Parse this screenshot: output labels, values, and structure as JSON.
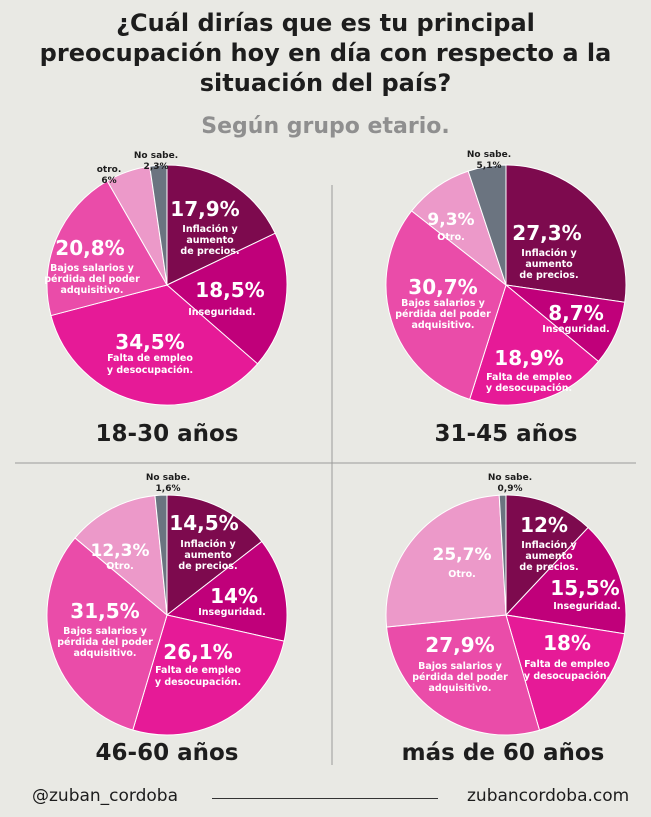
{
  "title": {
    "lines": [
      "¿Cuál dirías que es tu principal",
      "preocupación hoy en día con respecto a la",
      "situación del país?"
    ],
    "subtitle": "Según grupo etario."
  },
  "colors": {
    "inflacion": "#7d0a4e",
    "inseguridad": "#c0007a",
    "empleo": "#e61a97",
    "salarios": "#ea4ca9",
    "otro": "#ec99c9",
    "nosabe": "#6b7480",
    "background": "#e9e9e4"
  },
  "chart_data": [
    {
      "type": "pie",
      "title": "18-30 años",
      "slices": [
        {
          "key": "inflacion",
          "value": 17.9,
          "pct": "17,9%",
          "label": "Inflación y aumento de precios."
        },
        {
          "key": "inseguridad",
          "value": 18.5,
          "pct": "18,5%",
          "label": "Inseguridad."
        },
        {
          "key": "empleo",
          "value": 34.5,
          "pct": "34,5%",
          "label": "Falta de empleo y desocupación."
        },
        {
          "key": "salarios",
          "value": 20.8,
          "pct": "20,8%",
          "label": "Bajos salarios y pérdida del poder adquisitivo."
        },
        {
          "key": "otro",
          "value": 6,
          "pct": "6%",
          "label": "otro."
        },
        {
          "key": "nosabe",
          "value": 2.3,
          "pct": "2,3%",
          "label": "No sabe."
        }
      ]
    },
    {
      "type": "pie",
      "title": "31-45 años",
      "slices": [
        {
          "key": "inflacion",
          "value": 27.3,
          "pct": "27,3%",
          "label": "Inflación y aumento de precios."
        },
        {
          "key": "inseguridad",
          "value": 8.7,
          "pct": "8,7%",
          "label": "Inseguridad."
        },
        {
          "key": "empleo",
          "value": 18.9,
          "pct": "18,9%",
          "label": "Falta de empleo y desocupación."
        },
        {
          "key": "salarios",
          "value": 30.7,
          "pct": "30,7%",
          "label": "Bajos salarios y pérdida del poder adquisitivo."
        },
        {
          "key": "otro",
          "value": 9.3,
          "pct": "9,3%",
          "label": "Otro."
        },
        {
          "key": "nosabe",
          "value": 5.1,
          "pct": "5,1%",
          "label": "No sabe."
        }
      ]
    },
    {
      "type": "pie",
      "title": "46-60 años",
      "slices": [
        {
          "key": "inflacion",
          "value": 14.5,
          "pct": "14,5%",
          "label": "Inflación y aumento de precios."
        },
        {
          "key": "inseguridad",
          "value": 14,
          "pct": "14%",
          "label": "Inseguridad."
        },
        {
          "key": "empleo",
          "value": 26.1,
          "pct": "26,1%",
          "label": "Falta de empleo y desocupación."
        },
        {
          "key": "salarios",
          "value": 31.5,
          "pct": "31,5%",
          "label": "Bajos salarios y pérdida del poder adquisitivo."
        },
        {
          "key": "otro",
          "value": 12.3,
          "pct": "12,3%",
          "label": "Otro."
        },
        {
          "key": "nosabe",
          "value": 1.6,
          "pct": "1,6%",
          "label": "No sabe."
        }
      ]
    },
    {
      "type": "pie",
      "title": "más de 60 años",
      "slices": [
        {
          "key": "inflacion",
          "value": 12,
          "pct": "12%",
          "label": "Inflación y aumento de precios."
        },
        {
          "key": "inseguridad",
          "value": 15.5,
          "pct": "15,5%",
          "label": "Inseguridad."
        },
        {
          "key": "empleo",
          "value": 18,
          "pct": "18%",
          "label": "Falta de empleo y desocupación."
        },
        {
          "key": "salarios",
          "value": 27.9,
          "pct": "27,9%",
          "label": "Bajos salarios y pérdida del poder adquisitivo."
        },
        {
          "key": "otro",
          "value": 25.7,
          "pct": "25,7%",
          "label": "Otro."
        },
        {
          "key": "nosabe",
          "value": 0.9,
          "pct": "0,9%",
          "label": "No sabe."
        }
      ]
    }
  ],
  "footer": {
    "handle": "@zuban_cordoba",
    "site": "zubancordoba.com"
  }
}
